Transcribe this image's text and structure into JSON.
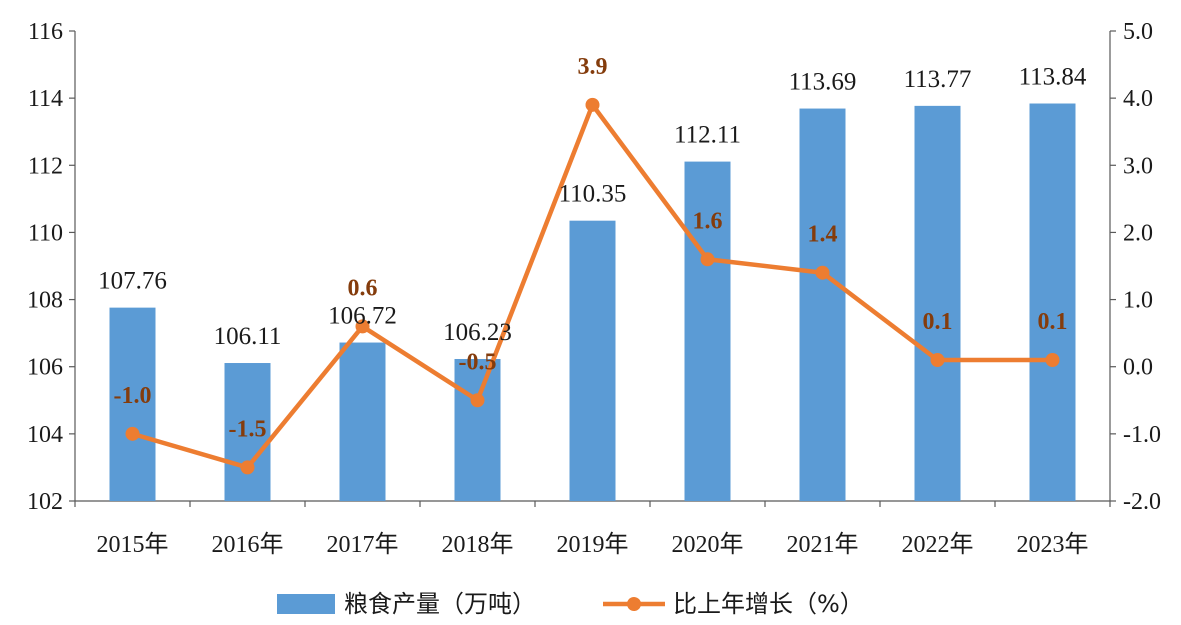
{
  "chart_data": {
    "type": "bar+line",
    "categories": [
      "2015年",
      "2016年",
      "2017年",
      "2018年",
      "2019年",
      "2020年",
      "2021年",
      "2022年",
      "2023年"
    ],
    "series": [
      {
        "name": "粮食产量（万吨）",
        "type": "bar",
        "axis": "left",
        "values": [
          107.76,
          106.11,
          106.72,
          106.23,
          110.35,
          112.11,
          113.69,
          113.77,
          113.84
        ],
        "labels": [
          "107.76",
          "106.11",
          "106.72",
          "106.23",
          "110.35",
          "112.11",
          "113.69",
          "113.77",
          "113.84"
        ],
        "color": "#5b9bd5"
      },
      {
        "name": "比上年增长（%）",
        "type": "line",
        "axis": "right",
        "values": [
          -1.0,
          -1.5,
          0.6,
          -0.5,
          3.9,
          1.6,
          1.4,
          0.1,
          0.1
        ],
        "labels": [
          "-1.0",
          "-1.5",
          "0.6",
          "-0.5",
          "3.9",
          "1.6",
          "1.4",
          "0.1",
          "0.1"
        ],
        "color": "#ed7d31",
        "label_color": "#843c0c"
      }
    ],
    "y_left": {
      "min": 102,
      "max": 116,
      "ticks": [
        102,
        104,
        106,
        108,
        110,
        112,
        114,
        116
      ],
      "tick_labels": [
        "102",
        "104",
        "106",
        "108",
        "110",
        "112",
        "114",
        "116"
      ]
    },
    "y_right": {
      "min": -2.0,
      "max": 5.0,
      "ticks": [
        -2.0,
        -1.0,
        0.0,
        1.0,
        2.0,
        3.0,
        4.0,
        5.0
      ],
      "tick_labels": [
        "-2.0",
        "-1.0",
        "0.0",
        "1.0",
        "2.0",
        "3.0",
        "4.0",
        "5.0"
      ]
    },
    "grid": false,
    "legend_position": "bottom"
  }
}
